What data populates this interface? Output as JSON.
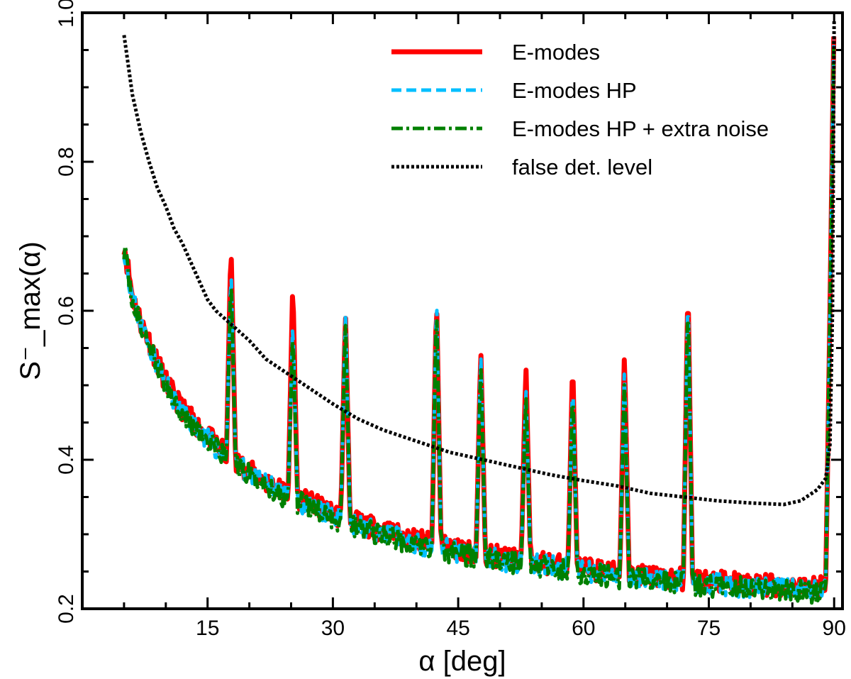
{
  "chart_data": {
    "type": "line",
    "xlabel": "α [deg]",
    "ylabel": "S⁻_max(α)",
    "xlim": [
      0,
      91
    ],
    "ylim": [
      0.2,
      1.0
    ],
    "x_ticks": [
      15,
      30,
      45,
      60,
      75,
      90
    ],
    "y_ticks": [
      0.2,
      0.4,
      0.6,
      0.8,
      1.0
    ],
    "y_tick_labels": [
      "0.2",
      "0.4",
      "0.6",
      "0.8",
      "1.0"
    ],
    "grid": false,
    "legend_position": "top-right",
    "baseline_curve": [
      [
        5,
        0.69
      ],
      [
        6,
        0.62
      ],
      [
        7,
        0.585
      ],
      [
        8,
        0.56
      ],
      [
        9,
        0.53
      ],
      [
        10,
        0.505
      ],
      [
        11,
        0.485
      ],
      [
        12,
        0.468
      ],
      [
        13,
        0.455
      ],
      [
        14,
        0.443
      ],
      [
        15,
        0.432
      ],
      [
        16,
        0.42
      ],
      [
        17,
        0.41
      ],
      [
        18,
        0.4
      ],
      [
        20,
        0.385
      ],
      [
        22,
        0.37
      ],
      [
        24,
        0.358
      ],
      [
        26,
        0.348
      ],
      [
        28,
        0.338
      ],
      [
        30,
        0.328
      ],
      [
        33,
        0.315
      ],
      [
        36,
        0.305
      ],
      [
        40,
        0.292
      ],
      [
        45,
        0.28
      ],
      [
        50,
        0.27
      ],
      [
        55,
        0.262
      ],
      [
        60,
        0.254
      ],
      [
        65,
        0.247
      ],
      [
        70,
        0.242
      ],
      [
        75,
        0.237
      ],
      [
        80,
        0.233
      ],
      [
        85,
        0.23
      ],
      [
        88,
        0.228
      ],
      [
        89,
        0.24
      ],
      [
        89.5,
        0.6
      ],
      [
        90,
        1.0
      ]
    ],
    "peaks": [
      {
        "alpha": 17.8,
        "E_modes": 0.69,
        "E_modes_HP": 0.66,
        "E_modes_HP_noise": 0.645
      },
      {
        "alpha": 25.2,
        "E_modes": 0.64,
        "E_modes_HP": 0.59,
        "E_modes_HP_noise": 0.575
      },
      {
        "alpha": 31.5,
        "E_modes": 0.6,
        "E_modes_HP": 0.605,
        "E_modes_HP_noise": 0.59
      },
      {
        "alpha": 42.4,
        "E_modes": 0.62,
        "E_modes_HP": 0.625,
        "E_modes_HP_noise": 0.61
      },
      {
        "alpha": 47.7,
        "E_modes": 0.55,
        "E_modes_HP": 0.545,
        "E_modes_HP_noise": 0.53
      },
      {
        "alpha": 53.1,
        "E_modes": 0.53,
        "E_modes_HP": 0.5,
        "E_modes_HP_noise": 0.49
      },
      {
        "alpha": 58.7,
        "E_modes": 0.535,
        "E_modes_HP": 0.51,
        "E_modes_HP_noise": 0.5
      },
      {
        "alpha": 64.9,
        "E_modes": 0.545,
        "E_modes_HP": 0.525,
        "E_modes_HP_noise": 0.51
      },
      {
        "alpha": 72.5,
        "E_modes": 0.64,
        "E_modes_HP": 0.635,
        "E_modes_HP_noise": 0.625
      }
    ],
    "series": [
      {
        "name": "E-modes",
        "color": "#ff0000",
        "style": "solid",
        "offset": 0.0,
        "seed": 11
      },
      {
        "name": "E-modes HP",
        "color": "#00bfff",
        "style": "dashed",
        "offset": -0.004,
        "seed": 23
      },
      {
        "name": "E-modes HP + extra noise",
        "color": "#008000",
        "style": "dashdot",
        "offset": -0.006,
        "seed": 37
      },
      {
        "name": "false det. level",
        "color": "#000000",
        "style": "dotted",
        "values": [
          [
            5,
            0.97
          ],
          [
            6,
            0.89
          ],
          [
            7,
            0.84
          ],
          [
            8,
            0.8
          ],
          [
            9,
            0.765
          ],
          [
            10,
            0.74
          ],
          [
            11,
            0.71
          ],
          [
            12,
            0.69
          ],
          [
            13,
            0.665
          ],
          [
            14,
            0.64
          ],
          [
            15,
            0.615
          ],
          [
            16,
            0.6
          ],
          [
            17,
            0.59
          ],
          [
            18,
            0.58
          ],
          [
            20,
            0.56
          ],
          [
            22,
            0.535
          ],
          [
            24,
            0.52
          ],
          [
            26,
            0.505
          ],
          [
            28,
            0.49
          ],
          [
            30,
            0.475
          ],
          [
            33,
            0.455
          ],
          [
            36,
            0.44
          ],
          [
            40,
            0.425
          ],
          [
            44,
            0.41
          ],
          [
            48,
            0.4
          ],
          [
            52,
            0.39
          ],
          [
            56,
            0.38
          ],
          [
            60,
            0.372
          ],
          [
            64,
            0.365
          ],
          [
            68,
            0.355
          ],
          [
            72,
            0.35
          ],
          [
            76,
            0.345
          ],
          [
            80,
            0.342
          ],
          [
            84,
            0.34
          ],
          [
            86,
            0.345
          ],
          [
            88,
            0.36
          ],
          [
            89,
            0.375
          ],
          [
            89.5,
            0.42
          ],
          [
            89.8,
            0.6
          ],
          [
            90,
            0.99
          ]
        ]
      }
    ]
  }
}
